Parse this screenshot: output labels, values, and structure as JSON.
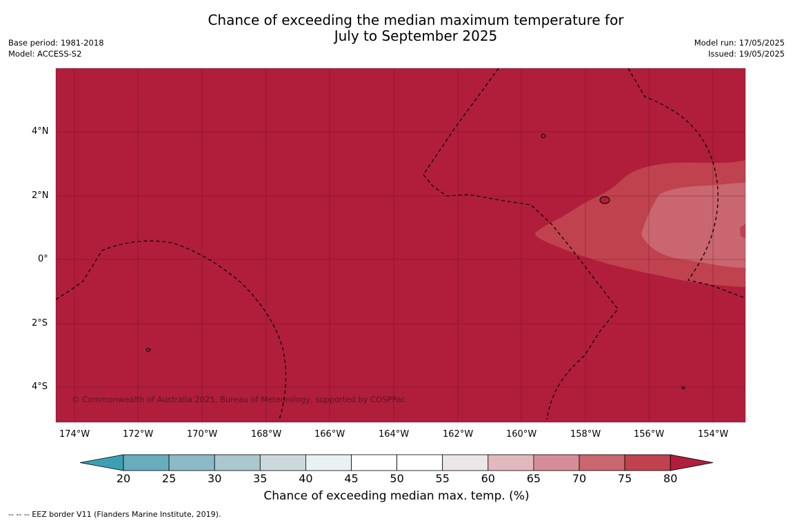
{
  "title_line1": "Chance of exceeding the median maximum temperature for",
  "title_line2": "July to September 2025",
  "meta_left": {
    "base_period": "Base period: 1981-2018",
    "model": "Model: ACCESS-S2"
  },
  "meta_right": {
    "model_run": "Model run: 17/05/2025",
    "issued": "Issued: 19/05/2025"
  },
  "map": {
    "lat_labels": [
      "4°N",
      "2°N",
      "0°",
      "2°S",
      "4°S"
    ],
    "lon_labels": [
      "174°W",
      "172°W",
      "170°W",
      "168°W",
      "166°W",
      "164°W",
      "162°W",
      "160°W",
      "158°W",
      "156°W",
      "154°W"
    ],
    "copyright": "© Commonwealth of Australia 2025, Bureau of Meteorology, supported by COSPPac",
    "colors": {
      "above_80": "#b01e3b",
      "c75_80": "#c0424f",
      "c70_75": "#c96670"
    }
  },
  "colorbar": {
    "ticks": [
      "20",
      "25",
      "30",
      "35",
      "40",
      "45",
      "50",
      "55",
      "60",
      "65",
      "70",
      "75",
      "80"
    ],
    "colors": [
      "#3c9fb3",
      "#68adbe",
      "#8bbac6",
      "#aac8ce",
      "#cad9dc",
      "#eaf1f2",
      "#ffffff",
      "#ffffff",
      "#ebe7e8",
      "#e2b8bf",
      "#d78d97",
      "#c96670",
      "#c0424f",
      "#b01e3b"
    ],
    "label": "Chance of exceeding median max. temp. (%)"
  },
  "footer": "--  --  -- EEZ border V11 (Flanders Marine Institute, 2019)."
}
